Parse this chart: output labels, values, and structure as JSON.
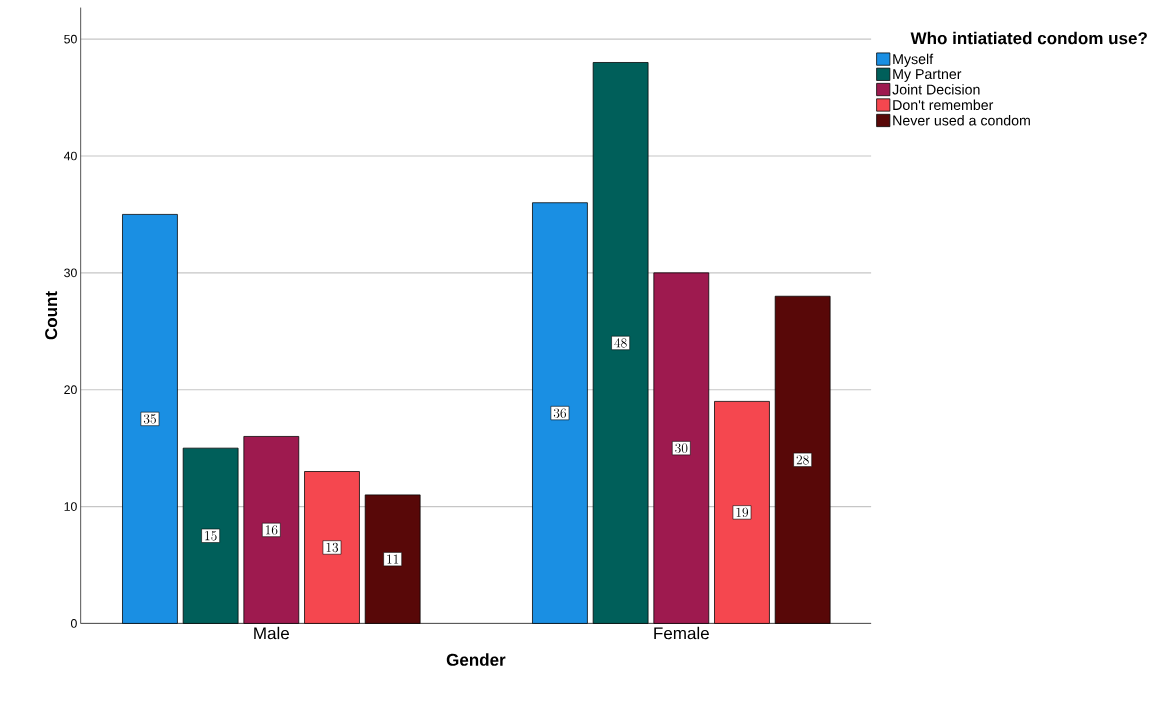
{
  "chart_data": {
    "type": "bar",
    "xlabel": "Gender",
    "ylabel": "Count",
    "legend_title": "Who intiatiated condom use?",
    "categories": [
      "Male",
      "Female"
    ],
    "series": [
      {
        "name": "Myself",
        "color": "#1a8fe3",
        "values": [
          35,
          36
        ]
      },
      {
        "name": "My Partner",
        "color": "#005f5a",
        "values": [
          15,
          48
        ]
      },
      {
        "name": "Joint Decision",
        "color": "#9e1a4f",
        "values": [
          16,
          30
        ]
      },
      {
        "name": "Don't remember",
        "color": "#f5474f",
        "values": [
          13,
          19
        ]
      },
      {
        "name": "Never used a condom",
        "color": "#580808",
        "values": [
          11,
          28
        ]
      }
    ],
    "ylim": [
      0,
      52.7
    ],
    "yticks": [
      0,
      10,
      20,
      30,
      40,
      50
    ],
    "grid": "y",
    "legend": "top right",
    "data_labels": true
  }
}
